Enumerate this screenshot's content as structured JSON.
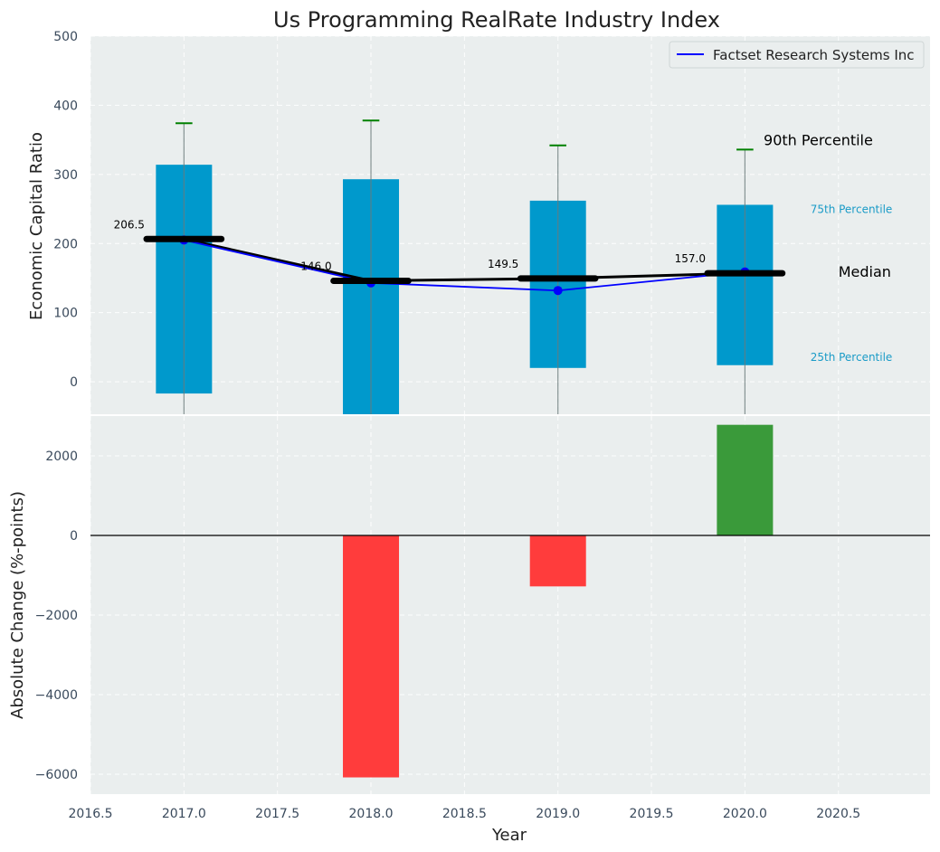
{
  "chart_data": {
    "type": "bar",
    "title": "Us Programming RealRate Industry Index",
    "xlabel": "Year",
    "x_ticks": [
      "2016.5",
      "2017.0",
      "2017.5",
      "2018.0",
      "2018.5",
      "2019.0",
      "2019.5",
      "2020.0",
      "2020.5"
    ],
    "xlim": [
      2016.5,
      2020.99
    ],
    "top": {
      "ylabel": "Economic Capital Ratio",
      "ylim": [
        -47,
        500
      ],
      "y_ticks": [
        "0",
        "100",
        "200",
        "300",
        "400",
        "500"
      ],
      "years": [
        2017,
        2018,
        2019,
        2020
      ],
      "p25": [
        -17,
        -47,
        20,
        24
      ],
      "p75": [
        314,
        293,
        262,
        256
      ],
      "p90": [
        374,
        378,
        342,
        336
      ],
      "median": [
        206.5,
        146.0,
        149.5,
        157.0
      ],
      "median_labels": [
        "206.5",
        "146.0",
        "149.5",
        "157.0"
      ],
      "company_series": {
        "name": "Factset Research Systems Inc",
        "values": [
          205,
          143,
          132,
          159
        ]
      },
      "annotations": {
        "p90": "90th Percentile",
        "p75": "75th Percentile",
        "median": "Median",
        "p25": "25th Percentile"
      },
      "colors": {
        "box": "#0099cc",
        "whisker_cap": "#008000",
        "company": "#0000ff",
        "median": "#000000"
      }
    },
    "bottom": {
      "ylabel": "Absolute Change (%-points)",
      "ylim": [
        -6500,
        3000
      ],
      "y_ticks": [
        "−6000",
        "−4000",
        "−2000",
        "0",
        "2000"
      ],
      "years": [
        2017,
        2018,
        2019,
        2020
      ],
      "values": [
        0,
        -6080,
        -1280,
        2780
      ],
      "colors": {
        "positive": "#3a9a3a",
        "negative": "#ff3c3c"
      }
    }
  }
}
